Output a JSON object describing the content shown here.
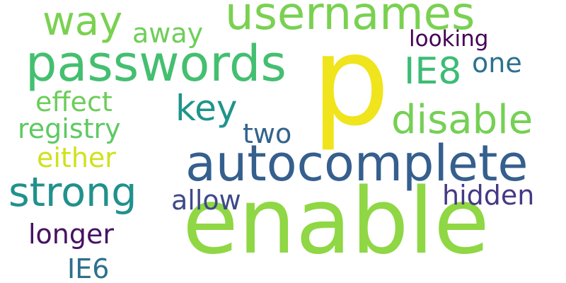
{
  "words": {
    "p": {
      "text": "p",
      "color": "#f0e41c"
    },
    "enable": {
      "text": "enable",
      "color": "#8fd744"
    },
    "autocomplete": {
      "text": "autocomplete",
      "color": "#355f8d"
    },
    "passwords": {
      "text": "passwords",
      "color": "#44bf70"
    },
    "usernames": {
      "text": "usernames",
      "color": "#7ad151"
    },
    "disable": {
      "text": "disable",
      "color": "#75d054"
    },
    "strong": {
      "text": "strong",
      "color": "#21918c"
    },
    "way": {
      "text": "way",
      "color": "#7ad151"
    },
    "ie8": {
      "text": "IE8",
      "color": "#3cbc75"
    },
    "key": {
      "text": "key",
      "color": "#1f948c"
    },
    "hidden": {
      "text": "hidden",
      "color": "#443983"
    },
    "longer": {
      "text": "longer",
      "color": "#471164"
    },
    "one": {
      "text": "one",
      "color": "#2c728e"
    },
    "effect": {
      "text": "effect",
      "color": "#6ccd5a"
    },
    "registry": {
      "text": "registry",
      "color": "#5ec962"
    },
    "either": {
      "text": "either",
      "color": "#d0e11c"
    },
    "allow": {
      "text": "allow",
      "color": "#3e4989"
    },
    "two": {
      "text": "two",
      "color": "#33638d"
    },
    "ie6": {
      "text": "IE6",
      "color": "#2d708e"
    },
    "away": {
      "text": "away",
      "color": "#6ece58"
    },
    "looking": {
      "text": "looking",
      "color": "#440154"
    }
  }
}
